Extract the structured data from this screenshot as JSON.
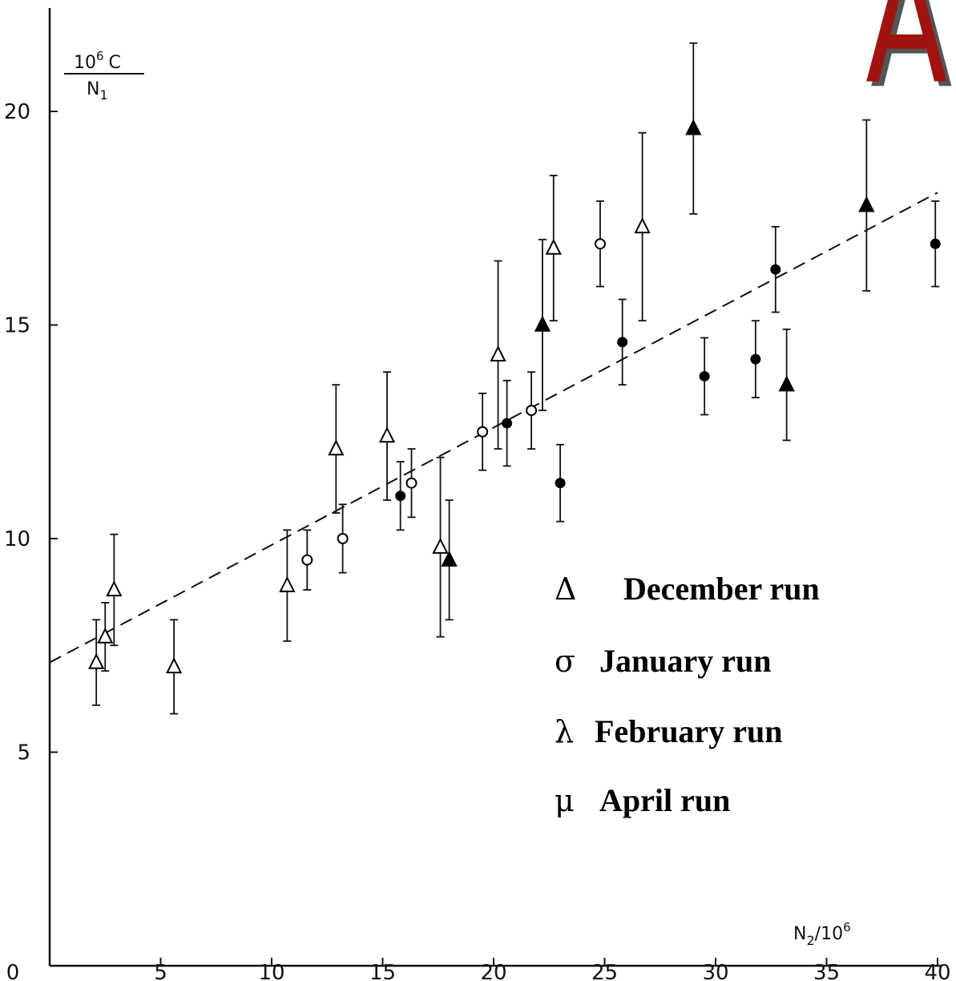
{
  "chart_data": {
    "type": "scatter",
    "title": "",
    "xlabel": "N2/10^6",
    "ylabel": "10^6 C / N1",
    "xlim": [
      0,
      40
    ],
    "ylim": [
      0,
      22
    ],
    "x_ticks": [
      0,
      5,
      10,
      15,
      20,
      25,
      30,
      35,
      40
    ],
    "y_ticks": [
      5,
      10,
      15,
      20
    ],
    "grid": false,
    "legend_position": "center-right",
    "fit_line": {
      "style": "dashed",
      "x": [
        0,
        40
      ],
      "y": [
        7.1,
        18.1
      ]
    },
    "series": [
      {
        "name": "December run",
        "symbol": "Δ",
        "marker": "open-triangle",
        "points": [
          {
            "x": 2.1,
            "y": 7.1,
            "err": 1.0
          },
          {
            "x": 2.5,
            "y": 7.7,
            "err": 0.8
          },
          {
            "x": 2.9,
            "y": 8.8,
            "err": 1.3
          },
          {
            "x": 5.6,
            "y": 7.0,
            "err": 1.1
          },
          {
            "x": 10.7,
            "y": 8.9,
            "err": 1.3
          },
          {
            "x": 12.9,
            "y": 12.1,
            "err": 1.5
          },
          {
            "x": 15.2,
            "y": 12.4,
            "err": 1.5
          },
          {
            "x": 17.6,
            "y": 9.8,
            "err": 2.1
          },
          {
            "x": 20.2,
            "y": 14.3,
            "err": 2.2
          },
          {
            "x": 22.7,
            "y": 16.8,
            "err": 1.7
          },
          {
            "x": 26.7,
            "y": 17.3,
            "err": 2.2
          }
        ]
      },
      {
        "name": "January run",
        "symbol": "σ",
        "marker": "open-circle",
        "points": [
          {
            "x": 11.6,
            "y": 9.5,
            "err": 0.7
          },
          {
            "x": 13.2,
            "y": 10.0,
            "err": 0.8
          },
          {
            "x": 16.3,
            "y": 11.3,
            "err": 0.8
          },
          {
            "x": 19.5,
            "y": 12.5,
            "err": 0.9
          },
          {
            "x": 21.7,
            "y": 13.0,
            "err": 0.9
          },
          {
            "x": 24.8,
            "y": 16.9,
            "err": 1.0
          }
        ]
      },
      {
        "name": "February run",
        "symbol": "λ",
        "marker": "filled-circle",
        "points": [
          {
            "x": 15.8,
            "y": 11.0,
            "err": 0.8
          },
          {
            "x": 20.6,
            "y": 12.7,
            "err": 1.0
          },
          {
            "x": 23.0,
            "y": 11.3,
            "err": 0.9
          },
          {
            "x": 25.8,
            "y": 14.6,
            "err": 1.0
          },
          {
            "x": 29.5,
            "y": 13.8,
            "err": 0.9
          },
          {
            "x": 31.8,
            "y": 14.2,
            "err": 0.9
          },
          {
            "x": 32.7,
            "y": 16.3,
            "err": 1.0
          },
          {
            "x": 39.9,
            "y": 16.9,
            "err": 1.0
          }
        ]
      },
      {
        "name": "April run",
        "symbol": "μ",
        "marker": "filled-triangle",
        "points": [
          {
            "x": 18.0,
            "y": 9.5,
            "err": 1.4
          },
          {
            "x": 22.2,
            "y": 15.0,
            "err": 2.0
          },
          {
            "x": 29.0,
            "y": 19.6,
            "err": 2.0
          },
          {
            "x": 33.2,
            "y": 13.6,
            "err": 1.3
          },
          {
            "x": 36.8,
            "y": 17.8,
            "err": 2.0
          }
        ]
      }
    ]
  },
  "logo": {
    "text": "A",
    "color": "#a0140f",
    "shadow": "#555555"
  }
}
